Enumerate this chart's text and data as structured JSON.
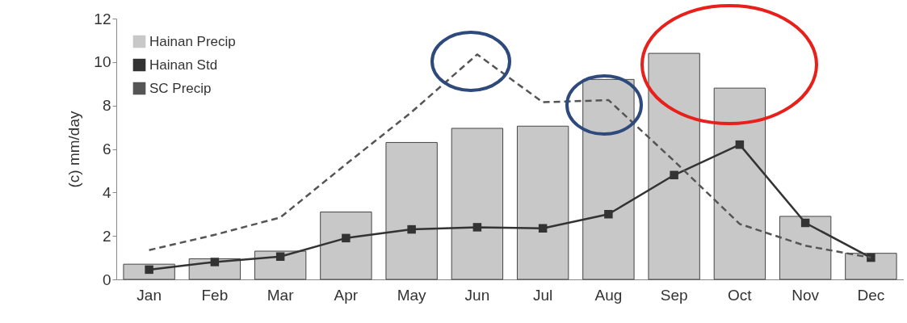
{
  "chart_data": {
    "type": "bar",
    "ylabel": "(c) mm/day",
    "categories": [
      "Jan",
      "Feb",
      "Mar",
      "Apr",
      "May",
      "Jun",
      "Jul",
      "Aug",
      "Sep",
      "Oct",
      "Nov",
      "Dec"
    ],
    "series": [
      {
        "name": "Hainan Precip",
        "color": "#c8c8c8",
        "values": [
          0.7,
          0.95,
          1.3,
          3.1,
          6.3,
          6.95,
          7.05,
          9.2,
          10.4,
          8.8,
          2.9,
          1.2
        ]
      },
      {
        "name": "Hainan Std",
        "type": "line",
        "color": "#333333",
        "marker": "square",
        "line_style": "solid",
        "values": [
          0.45,
          0.8,
          1.05,
          1.9,
          2.3,
          2.4,
          2.35,
          3.0,
          4.8,
          6.2,
          2.6,
          1.0
        ]
      },
      {
        "name": "SC Precip",
        "type": "line",
        "color": "#555555",
        "marker": "none",
        "line_style": "dashed",
        "values": [
          1.35,
          2.05,
          2.85,
          5.3,
          7.7,
          10.35,
          8.15,
          8.25,
          5.45,
          2.55,
          1.55,
          1.0
        ]
      }
    ],
    "ylim": [
      0,
      12
    ],
    "yticks": [
      0,
      2,
      4,
      6,
      8,
      10,
      12
    ],
    "grid": false,
    "legend": "top left"
  }
}
